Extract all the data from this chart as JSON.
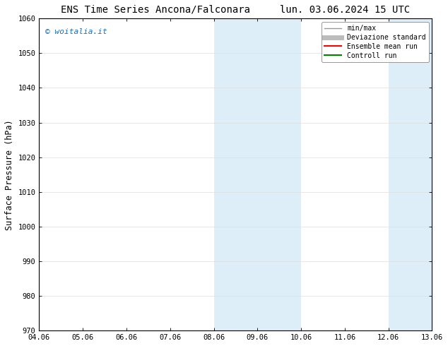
{
  "title_left": "ENS Time Series Ancona/Falconara",
  "title_right": "lun. 03.06.2024 15 UTC",
  "ylabel": "Surface Pressure (hPa)",
  "ylim": [
    970,
    1060
  ],
  "yticks": [
    970,
    980,
    990,
    1000,
    1010,
    1020,
    1030,
    1040,
    1050,
    1060
  ],
  "xtick_labels": [
    "04.06",
    "05.06",
    "06.06",
    "07.06",
    "08.06",
    "09.06",
    "10.06",
    "11.06",
    "12.06",
    "13.06"
  ],
  "xtick_positions": [
    0,
    1,
    2,
    3,
    4,
    5,
    6,
    7,
    8,
    9
  ],
  "shaded_regions": [
    {
      "x_start": 4.0,
      "x_end": 5.0,
      "color": "#ddeef9"
    },
    {
      "x_start": 5.0,
      "x_end": 6.0,
      "color": "#ddeef9"
    },
    {
      "x_start": 8.0,
      "x_end": 8.5,
      "color": "#ddeef9"
    },
    {
      "x_start": 8.5,
      "x_end": 9.0,
      "color": "#ddeef9"
    }
  ],
  "watermark_text": "© woitalia.it",
  "watermark_color": "#1a6fba",
  "legend_entries": [
    {
      "label": "min/max",
      "color": "#999999",
      "lw": 1.0
    },
    {
      "label": "Deviazione standard",
      "color": "#bbbbbb",
      "lw": 5
    },
    {
      "label": "Ensemble mean run",
      "color": "#ff0000",
      "lw": 1.5
    },
    {
      "label": "Controll run",
      "color": "#008000",
      "lw": 1.5
    }
  ],
  "bg_color": "#ffffff",
  "spine_color": "#000000",
  "grid_color": "#dddddd",
  "title_fontsize": 10,
  "tick_fontsize": 7.5,
  "ylabel_fontsize": 8.5
}
